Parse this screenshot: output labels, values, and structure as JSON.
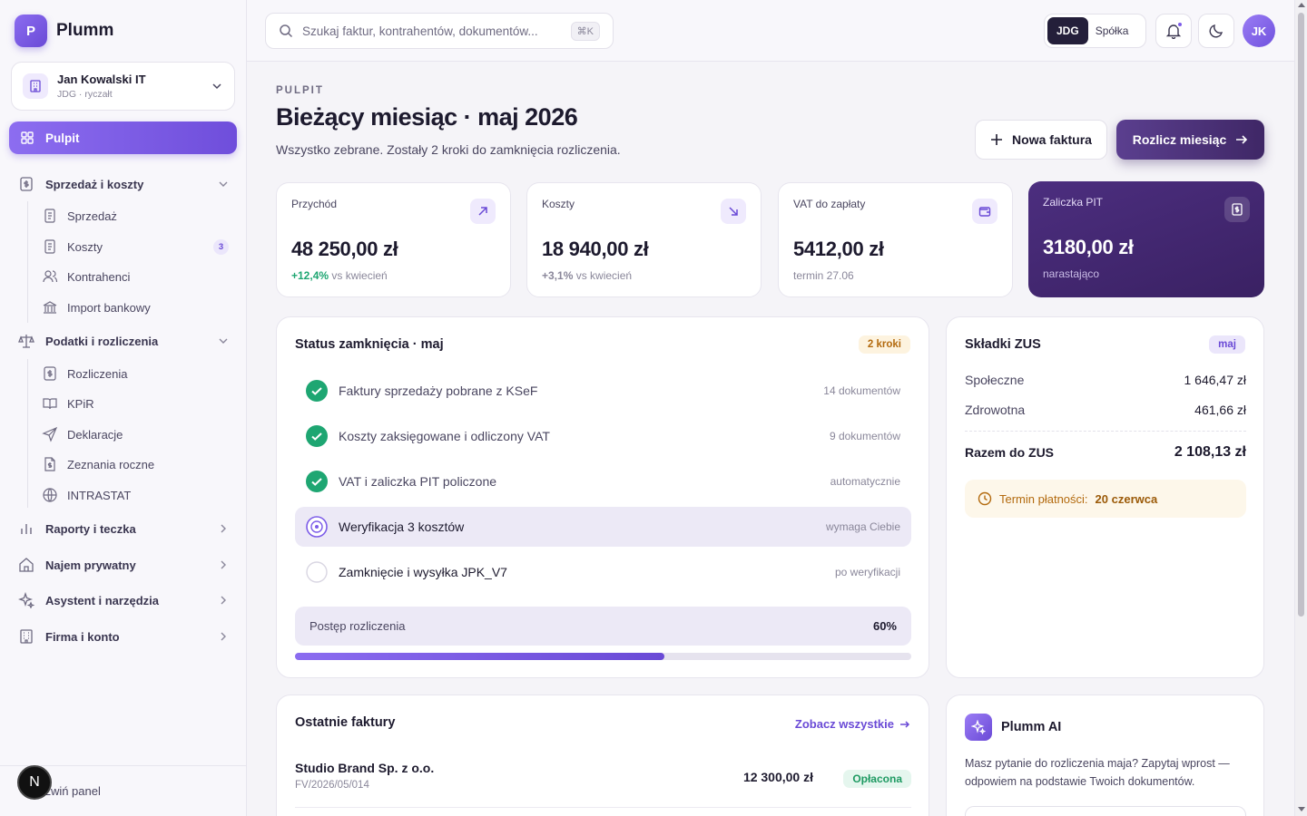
{
  "brand": {
    "logo_letter": "P",
    "name": "Plumm"
  },
  "company": {
    "name": "Jan Kowalski IT",
    "subtitle": "JDG · ryczałt"
  },
  "sidebar": {
    "active": "Pulpit",
    "groups": [
      {
        "label": "Sprzedaż i koszty"
      },
      {
        "label": "Podatki i rozliczenia"
      },
      {
        "label": "Raporty i teczka"
      },
      {
        "label": "Najem prywatny"
      },
      {
        "label": "Asystent i narzędzia"
      },
      {
        "label": "Firma i konto"
      }
    ],
    "sales_items": [
      {
        "label": "Sprzedaż"
      },
      {
        "label": "Koszty",
        "badge": "3"
      },
      {
        "label": "Kontrahenci"
      },
      {
        "label": "Import bankowy"
      }
    ],
    "tax_items": [
      {
        "label": "Rozliczenia"
      },
      {
        "label": "KPiR"
      },
      {
        "label": "Deklaracje"
      },
      {
        "label": "Zeznania roczne"
      },
      {
        "label": "INTRASTAT"
      }
    ],
    "collapse_label": "Zwiń panel",
    "next_badge": "N"
  },
  "topbar": {
    "search_placeholder": "Szukaj faktur, kontrahentów, dokumentów...",
    "shortcut": "⌘K",
    "segment_on": "JDG",
    "segment_off": "Spółka",
    "avatar": "JK"
  },
  "header": {
    "eyebrow": "PULPIT",
    "title": "Bieżący miesiąc · maj 2026",
    "subtitle": "Wszystko zebrane. Zostały 2 kroki do zamknięcia rozliczenia.",
    "new_invoice": "Nowa faktura",
    "settle": "Rozlicz miesiąc"
  },
  "stats": [
    {
      "label": "Przychód",
      "value": "48 250,00 zł",
      "delta": "+12,4%",
      "sub": " vs kwiecień"
    },
    {
      "label": "Koszty",
      "value": "18 940,00 zł",
      "delta": "+3,1%",
      "sub": " vs kwiecień"
    },
    {
      "label": "VAT do zapłaty",
      "value": "5412,00 zł",
      "sub": "termin 27.06"
    },
    {
      "label": "Zaliczka PIT",
      "value": "3180,00 zł",
      "sub": "narastająco"
    }
  ],
  "status": {
    "title": "Status zamknięcia · maj",
    "pill": "2 kroki",
    "steps": [
      {
        "label": "Faktury sprzedaży pobrane z KSeF",
        "note": "14 dokumentów",
        "state": "done"
      },
      {
        "label": "Koszty zaksięgowane i odliczony VAT",
        "note": "9 dokumentów",
        "state": "done"
      },
      {
        "label": "VAT i zaliczka PIT policzone",
        "note": "automatycznie",
        "state": "done"
      },
      {
        "label": "Weryfikacja 3 kosztów",
        "note": "wymaga Ciebie",
        "state": "active"
      },
      {
        "label": "Zamknięcie i wysyłka JPK_V7",
        "note": "po weryfikacji",
        "state": "todo"
      }
    ],
    "progress_label": "Postęp rozliczenia",
    "progress_value": "60%",
    "progress_fraction": 0.6
  },
  "zus": {
    "title": "Składki ZUS",
    "pill": "maj",
    "rows": [
      {
        "label": "Społeczne",
        "value": "1 646,47 zł"
      },
      {
        "label": "Zdrowotna",
        "value": "461,66 zł"
      }
    ],
    "total_label": "Razem do ZUS",
    "total_value": "2 108,13 zł",
    "due_label": "Termin płatności:",
    "due_date": "20 czerwca"
  },
  "invoices": {
    "title": "Ostatnie faktury",
    "link": "Zobacz wszystkie",
    "items": [
      {
        "name": "Studio Brand Sp. z o.o.",
        "number": "FV/2026/05/014",
        "amount": "12 300,00 zł",
        "status": "Opłacona"
      }
    ]
  },
  "ai": {
    "title": "Plumm AI",
    "text": "Masz pytanie do rozliczenia maja? Zapytaj wprost — odpowiem na podstawie Twoich dokumentów."
  },
  "colors": {
    "accent": "#6a4ad6",
    "dark_card": "#3a2163",
    "success": "#1ea672",
    "warning": "#b36a0e"
  }
}
